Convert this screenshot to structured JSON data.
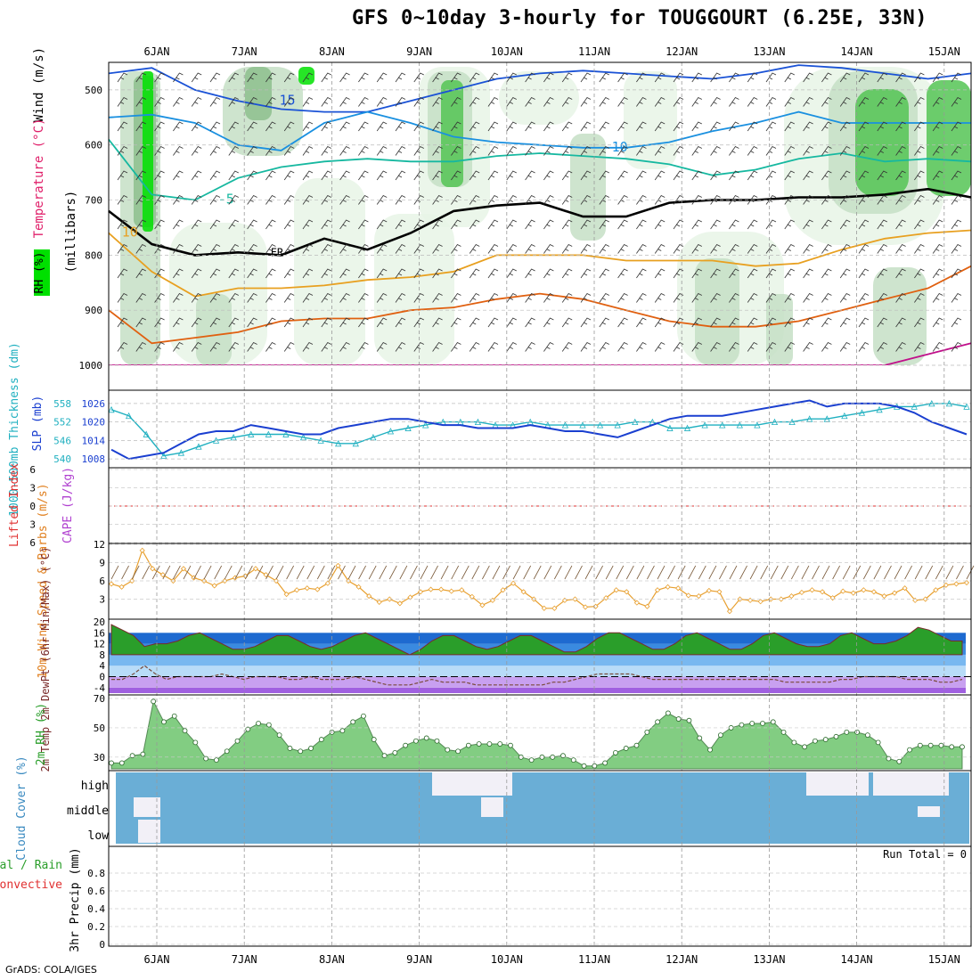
{
  "title": "GFS 0~10day 3-hourly for TOUGGOURT (6.25E, 33N)",
  "credit": "GrADS: COLA/IGES",
  "dates": [
    "6JAN",
    "7JAN",
    "8JAN",
    "9JAN",
    "10JAN",
    "11JAN",
    "12JAN",
    "13JAN",
    "14JAN",
    "15JAN"
  ],
  "colors": {
    "rh_light": "#e8f5e6",
    "rh_mid": "#c6dfc6",
    "rh_dark": "#8dbf8d",
    "rh_green": "#55c455",
    "rh_bright": "#00e000",
    "t_m15": "#1a52d6",
    "t_m10": "#1a90e0",
    "t_m5": "#16b8a0",
    "t_0": "#000000",
    "t_10": "#e8a020",
    "t_20": "#e06010",
    "t_30": "#c0108a",
    "thick": "#20b0c0",
    "slp": "#1a3fd0",
    "wind": "#e8a030",
    "barb": "#7a5a3a",
    "temp_fill": "#2a9e2a",
    "dew": "#7a4a3a",
    "cloud": "#6aaed6",
    "rh2": "#6fc86f"
  },
  "chart_data": [
    {
      "type": "heatmap",
      "ylabel": "(millibars)",
      "labels": {
        "rh": "RH (%)",
        "temperature": "Temperature (°C)",
        "wind": "Wind (m/s)"
      },
      "ylim": [
        1000,
        450
      ],
      "yticks": [
        500,
        600,
        700,
        800,
        900,
        1000
      ],
      "contours": [
        {
          "level": "-15",
          "label": "15",
          "color_key": "t_m15",
          "pressure": [
            470,
            460,
            500,
            520,
            535,
            540,
            540,
            520,
            500,
            480,
            470,
            465,
            470,
            475,
            480,
            470,
            455,
            460,
            470,
            480,
            470
          ],
          "label_at": "7.4"
        },
        {
          "level": "-10",
          "label": "10",
          "color_key": "t_m10",
          "pressure": [
            550,
            545,
            560,
            600,
            610,
            560,
            540,
            560,
            585,
            595,
            600,
            605,
            605,
            595,
            575,
            560,
            540,
            560,
            560,
            560,
            560
          ],
          "label_at": "11.2"
        },
        {
          "level": "-5",
          "label": "-5",
          "color_key": "t_m5",
          "pressure": [
            590,
            690,
            700,
            660,
            640,
            630,
            625,
            630,
            630,
            620,
            615,
            620,
            625,
            635,
            655,
            645,
            625,
            615,
            630,
            625,
            630
          ],
          "label_at": "6.7"
        },
        {
          "level": "0",
          "label": "FR",
          "color_key": "t_0",
          "pressure": [
            720,
            780,
            800,
            795,
            800,
            770,
            790,
            760,
            720,
            710,
            705,
            730,
            730,
            705,
            700,
            700,
            695,
            695,
            690,
            680,
            695
          ],
          "label_at": "7.3"
        },
        {
          "level": "10",
          "label": "10",
          "color_key": "t_10",
          "pressure": [
            760,
            830,
            875,
            860,
            860,
            855,
            845,
            840,
            830,
            800,
            800,
            800,
            810,
            810,
            810,
            820,
            815,
            790,
            770,
            760,
            755
          ],
          "label_at": "5.6"
        },
        {
          "level": "20",
          "label": "",
          "color_key": "t_20",
          "pressure": [
            900,
            960,
            950,
            940,
            920,
            915,
            915,
            900,
            895,
            880,
            870,
            880,
            900,
            920,
            930,
            930,
            920,
            900,
            880,
            860,
            820
          ],
          "label_at": ""
        },
        {
          "level": "30",
          "label": "",
          "color_key": "t_30",
          "pressure": [
            1000,
            1000,
            1000,
            1000,
            1000,
            1000,
            1000,
            1000,
            1000,
            1000,
            1000,
            1000,
            1000,
            1000,
            1000,
            1000,
            1000,
            1000,
            1000,
            980,
            960
          ],
          "label_at": ""
        }
      ],
      "rh_levels": [
        "30",
        "50",
        "70",
        "90"
      ]
    },
    {
      "type": "line",
      "ylabel_left": "1000-500mb Thickness (dm)",
      "ylabel_right": "SLP (mb)",
      "yticks_thickness": [
        540,
        546,
        552,
        558
      ],
      "yticks_slp": [
        1008,
        1014,
        1020,
        1026
      ],
      "series": [
        {
          "name": "Thickness",
          "color_key": "thick",
          "marker": "triangle",
          "values": [
            556,
            554,
            548,
            541,
            542,
            544,
            546,
            547,
            548,
            548,
            548,
            547,
            546,
            545,
            545,
            547,
            549,
            550,
            551,
            552,
            552,
            552,
            551,
            551,
            552,
            551,
            551,
            551,
            551,
            551,
            552,
            552,
            550,
            550,
            551,
            551,
            551,
            551,
            552,
            552,
            553,
            553,
            554,
            555,
            556,
            557,
            557,
            558,
            558,
            557
          ]
        },
        {
          "name": "SLP",
          "color_key": "slp",
          "marker": "none",
          "values": [
            1011,
            1008,
            1009,
            1010,
            1013,
            1016,
            1017,
            1017,
            1019,
            1018,
            1017,
            1016,
            1016,
            1018,
            1019,
            1020,
            1021,
            1021,
            1020,
            1019,
            1019,
            1018,
            1018,
            1018,
            1019,
            1018,
            1017,
            1017,
            1016,
            1015,
            1017,
            1019,
            1021,
            1022,
            1022,
            1022,
            1023,
            1024,
            1025,
            1026,
            1027,
            1025,
            1026,
            1026,
            1026,
            1025,
            1023,
            1020,
            1018,
            1016
          ]
        }
      ]
    },
    {
      "type": "line",
      "ylabel": "CAPE (J/kg)",
      "ylabel_2": "Lifted Index",
      "yticks": [
        6,
        3,
        0,
        -3,
        -6
      ],
      "yticklabels": [
        "6",
        "3",
        "0",
        "3",
        "6"
      ],
      "series": [
        {
          "name": "Lifted Index",
          "values": []
        }
      ]
    },
    {
      "type": "line",
      "ylabel": "10m Wind Speed & Barbs (m/s)",
      "yticks": [
        3,
        6,
        9,
        12
      ],
      "ylim": [
        0,
        12
      ],
      "series": [
        {
          "name": "Wind speed",
          "color_key": "wind",
          "values": [
            5.5,
            5,
            6,
            11,
            8,
            7,
            6,
            8,
            6.5,
            6,
            5.2,
            6,
            6.5,
            6.8,
            8,
            7,
            6,
            3.8,
            4.5,
            4.8,
            4.6,
            5.6,
            8.5,
            6,
            5,
            3.5,
            2.5,
            3,
            2.3,
            3.3,
            4.2,
            4.6,
            4.6,
            4.3,
            4.5,
            3.4,
            2,
            2.8,
            4.5,
            5.6,
            4.2,
            3,
            1.5,
            1.5,
            2.8,
            3,
            1.7,
            1.8,
            3.2,
            4.5,
            4.2,
            2.4,
            1.8,
            4.5,
            5,
            4.8,
            3.6,
            3.5,
            4.4,
            4.2,
            1,
            3,
            2.8,
            2.6,
            3,
            3,
            3.5,
            4.1,
            4.5,
            4.2,
            3.2,
            4.3,
            4,
            4.5,
            4.2,
            3.5,
            4,
            4.8,
            2.8,
            3,
            4.5,
            5.3,
            5.5,
            5.7
          ]
        }
      ]
    },
    {
      "type": "area",
      "ylabel": "2m Temp 2m DewPt (6hr Min/Max) (°C)",
      "yticks": [
        -4,
        0,
        4,
        8,
        12,
        16,
        20
      ],
      "ylim": [
        -6,
        20
      ],
      "series": [
        {
          "name": "Temperature",
          "color_key": "temp_fill",
          "values": [
            19,
            17,
            15,
            11,
            12,
            12,
            13,
            15,
            16,
            14,
            12,
            10,
            10,
            11,
            13,
            15,
            15,
            13,
            11,
            10,
            11,
            13,
            15,
            16,
            14,
            12,
            10,
            8,
            10,
            13,
            15,
            15,
            13,
            11,
            10,
            11,
            13,
            15,
            15,
            13,
            11,
            9,
            9,
            11,
            14,
            16,
            16,
            14,
            12,
            10,
            10,
            12,
            15,
            16,
            14,
            12,
            10,
            10,
            12,
            15,
            16,
            14,
            12,
            11,
            11,
            12,
            15,
            16,
            14,
            12,
            12,
            13,
            15,
            18,
            17,
            15,
            13,
            13
          ]
        },
        {
          "name": "Dew point",
          "color_key": "dew",
          "values": [
            -1,
            -1,
            1,
            4,
            1,
            -1,
            0,
            0,
            0,
            0,
            1,
            0,
            -1,
            0,
            0,
            0,
            -1,
            -1,
            0,
            -1,
            -1,
            -1,
            0,
            -1,
            -2,
            -3,
            -3,
            -3,
            -2,
            -1,
            -2,
            -2,
            -2,
            -3,
            -3,
            -3,
            -3,
            -3,
            -3,
            -3,
            -2,
            -2,
            -1,
            0,
            1,
            1,
            1,
            1,
            0,
            -1,
            -1,
            -1,
            -1,
            -1,
            -1,
            -1,
            -1,
            -1,
            -1,
            -1,
            -1,
            -2,
            -2,
            -2,
            -2,
            -2,
            -1,
            -1,
            0,
            0,
            0,
            0,
            -1,
            -1,
            -1,
            -2,
            -2,
            -1
          ]
        }
      ]
    },
    {
      "type": "area",
      "ylabel": "2m RH (%)",
      "yticks": [
        30,
        50,
        70
      ],
      "ylim": [
        22,
        70
      ],
      "series": [
        {
          "name": "RH",
          "color_key": "rh2",
          "values": [
            26,
            26,
            31,
            32,
            68,
            54,
            58,
            48,
            40,
            29,
            28,
            34,
            41,
            49,
            53,
            52,
            45,
            36,
            34,
            36,
            42,
            47,
            48,
            54,
            58,
            42,
            31,
            33,
            38,
            41,
            43,
            41,
            35,
            34,
            38,
            39,
            39,
            39,
            38,
            30,
            28,
            30,
            30,
            31,
            28,
            24,
            24,
            26,
            33,
            36,
            38,
            47,
            54,
            60,
            56,
            55,
            43,
            35,
            45,
            50,
            52,
            53,
            53,
            54,
            47,
            40,
            37,
            41,
            42,
            44,
            47,
            47,
            45,
            40,
            29,
            27,
            35,
            38,
            38,
            38,
            37,
            37
          ]
        }
      ]
    },
    {
      "type": "heatmap",
      "ylabel": "Cloud Cover (%)",
      "rows": [
        "high",
        "middle",
        "low"
      ],
      "color_key": "cloud"
    },
    {
      "type": "bar",
      "ylabel": "3hr Precip (mm)",
      "ylabel_2": "Total / Rain",
      "ylabel_3": "Convective",
      "yticks": [
        0,
        0.2,
        0.4,
        0.6,
        0.8
      ],
      "ylim": [
        0,
        1
      ],
      "annotation": "Run Total = 0",
      "series": [
        {
          "name": "Total / Rain",
          "values": []
        }
      ]
    }
  ]
}
